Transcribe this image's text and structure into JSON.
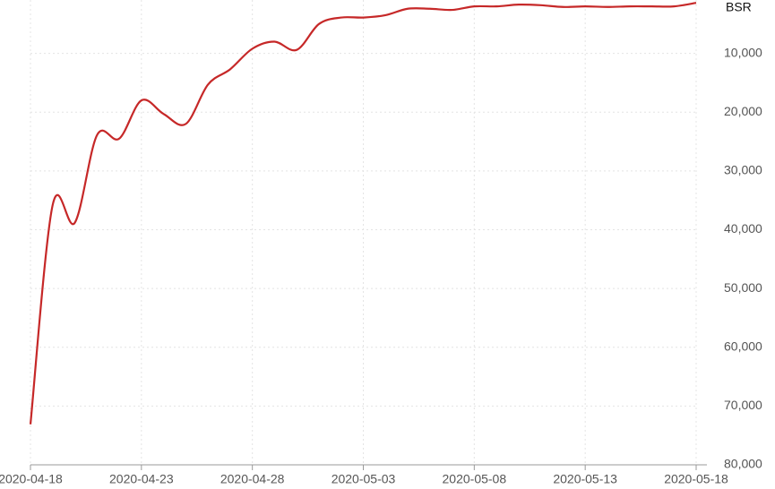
{
  "chart_data": {
    "type": "line",
    "y_label": "BSR",
    "x": [
      "2020-04-18",
      "2020-04-19",
      "2020-04-20",
      "2020-04-21",
      "2020-04-22",
      "2020-04-23",
      "2020-04-24",
      "2020-04-25",
      "2020-04-26",
      "2020-04-27",
      "2020-04-28",
      "2020-04-29",
      "2020-04-30",
      "2020-05-01",
      "2020-05-02",
      "2020-05-03",
      "2020-05-04",
      "2020-05-05",
      "2020-05-06",
      "2020-05-07",
      "2020-05-08",
      "2020-05-09",
      "2020-05-10",
      "2020-05-11",
      "2020-05-12",
      "2020-05-13",
      "2020-05-14",
      "2020-05-15",
      "2020-05-16",
      "2020-05-17",
      "2020-05-18"
    ],
    "series": [
      {
        "name": "BSR",
        "color": "#c62828",
        "values": [
          73100,
          35800,
          38800,
          23900,
          24500,
          18000,
          20300,
          22000,
          15300,
          12700,
          9200,
          8000,
          9400,
          5000,
          3900,
          3900,
          3500,
          2400,
          2400,
          2600,
          2000,
          2000,
          1700,
          1800,
          2100,
          2000,
          2100,
          2000,
          2000,
          2000,
          1400
        ]
      }
    ],
    "xticks": [
      "2020-04-18",
      "2020-04-23",
      "2020-04-28",
      "2020-05-03",
      "2020-05-08",
      "2020-05-13",
      "2020-05-18"
    ],
    "ylim": [
      0,
      80000
    ],
    "y_inverted": true,
    "yticks": [
      {
        "value": 10000,
        "label": "10,000"
      },
      {
        "value": 20000,
        "label": "20,000"
      },
      {
        "value": 30000,
        "label": "30,000"
      },
      {
        "value": 40000,
        "label": "40,000"
      },
      {
        "value": 50000,
        "label": "50,000"
      },
      {
        "value": 60000,
        "label": "60,000"
      },
      {
        "value": 70000,
        "label": "70,000"
      },
      {
        "value": 80000,
        "label": "80,000"
      }
    ],
    "grid": true
  }
}
